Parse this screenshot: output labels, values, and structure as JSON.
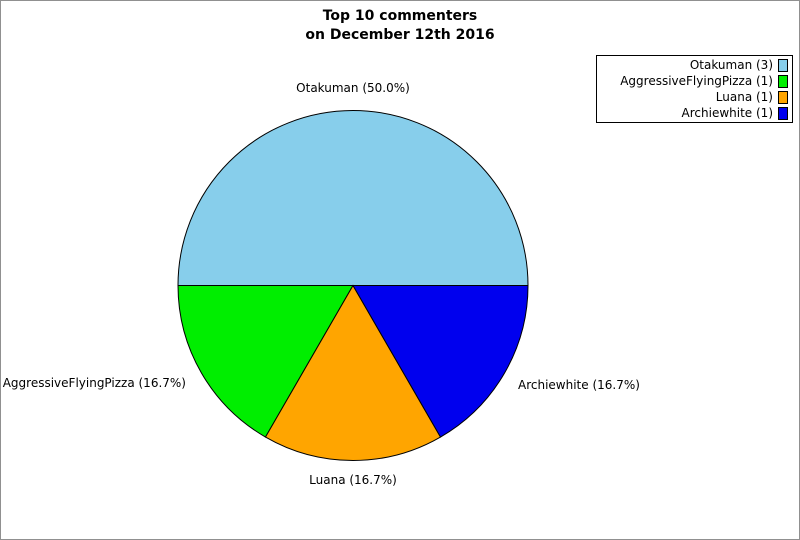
{
  "page": {
    "background": "#FFFFFF",
    "border_color": "#909090"
  },
  "title": {
    "line1": "Top 10 commenters",
    "line2": "on December 12th 2016"
  },
  "chart_data": {
    "type": "pie",
    "title": "Top 10 commenters on December 12th 2016",
    "total": 6,
    "start_angle_deg": 0,
    "direction": "counterclockwise",
    "legend_position": "upper-right",
    "slice_edge_color": "#000000",
    "categories": [
      "Otakuman",
      "AggressiveFlyingPizza",
      "Luana",
      "Archiewhite"
    ],
    "values": [
      3,
      1,
      1,
      1
    ],
    "percents": [
      50.0,
      16.7,
      16.7,
      16.7
    ],
    "slices": [
      {
        "name": "Otakuman",
        "value": 3,
        "percent": "50.0%",
        "color": "#87CEEB",
        "wedge_label": "Otakuman (50.0%)",
        "legend_label": "Otakuman (3)"
      },
      {
        "name": "AggressiveFlyingPizza",
        "value": 1,
        "percent": "16.7%",
        "color": "#00EE00",
        "wedge_label": "AggressiveFlyingPizza (16.7%)",
        "legend_label": "AggressiveFlyingPizza (1)"
      },
      {
        "name": "Luana",
        "value": 1,
        "percent": "16.7%",
        "color": "#FFA500",
        "wedge_label": "Luana (16.7%)",
        "legend_label": "Luana (1)"
      },
      {
        "name": "Archiewhite",
        "value": 1,
        "percent": "16.7%",
        "color": "#0000EE",
        "wedge_label": "Archiewhite (16.7%)",
        "legend_label": "Archiewhite (1)"
      }
    ]
  }
}
